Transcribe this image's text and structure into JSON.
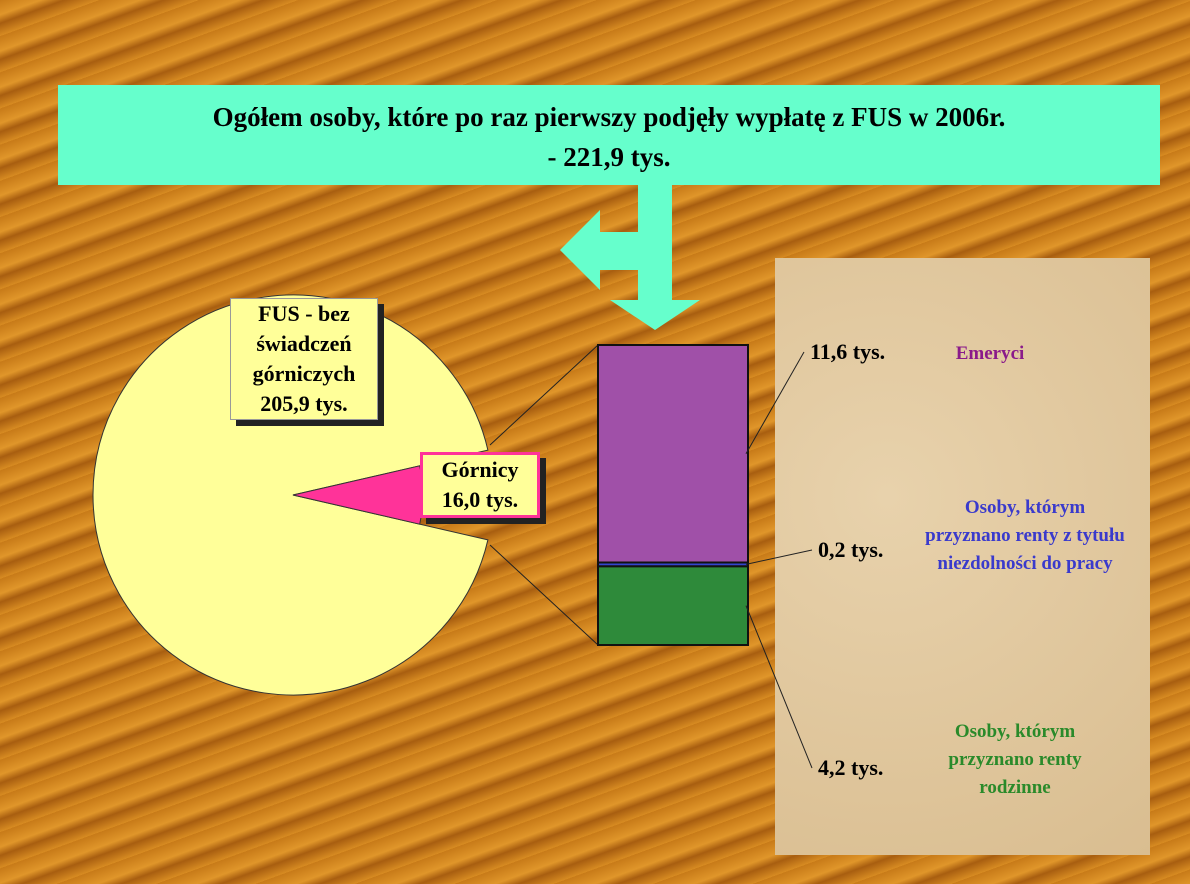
{
  "chart_data": [
    {
      "type": "pie",
      "title": "Ogółem osoby, które po raz pierwszy podjęły wypłatę z FUS w 2006r.",
      "subtitle": "- 221,9 tys.",
      "categories": [
        "FUS - bez świadczeń górniczych",
        "Górnicy"
      ],
      "values": [
        205.9,
        16.0
      ],
      "value_labels": [
        "205,9 tys.",
        "16,0 tys."
      ],
      "colors": [
        "#ffff99",
        "#ff3399"
      ]
    },
    {
      "type": "stacked-bar",
      "series": [
        {
          "name": "Emeryci",
          "color": "#a050a8",
          "values": [
            11.6
          ],
          "value_labels": [
            "11,6 tys."
          ]
        },
        {
          "name": "Osoby, którym przyznano renty z tytułu niezdolności do pracy",
          "color": "#3344cc",
          "values": [
            0.2
          ],
          "value_labels": [
            "0,2 tys."
          ]
        },
        {
          "name": "Osoby, którym przyznano renty rodzinne",
          "color": "#2e8a3a",
          "values": [
            4.2
          ],
          "value_labels": [
            "4,2 tys."
          ]
        }
      ]
    }
  ]
}
